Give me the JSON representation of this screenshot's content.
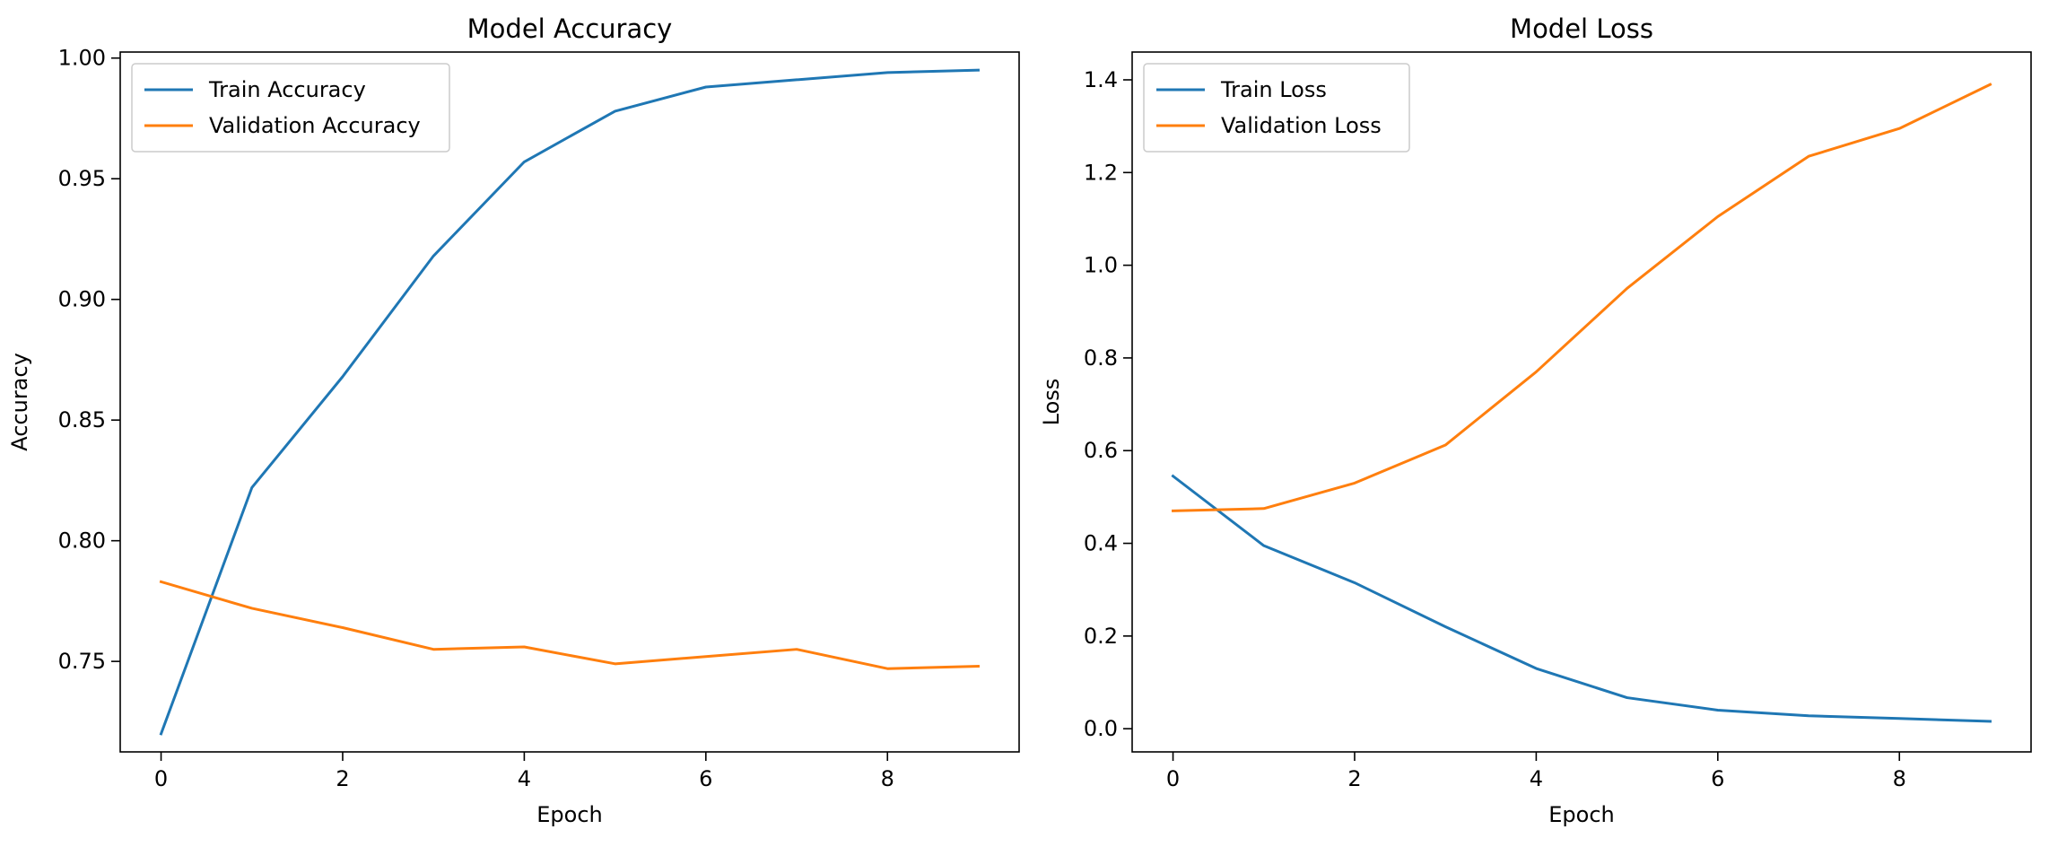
{
  "chart_data": [
    {
      "type": "line",
      "title": "Model Accuracy",
      "xlabel": "Epoch",
      "ylabel": "Accuracy",
      "x": [
        0,
        1,
        2,
        3,
        4,
        5,
        6,
        7,
        8,
        9
      ],
      "xlim": [
        -0.45,
        9.45
      ],
      "ylim": [
        0.7125,
        1.0025
      ],
      "xticks": [
        0,
        2,
        4,
        6,
        8
      ],
      "yticks": [
        0.75,
        0.8,
        0.85,
        0.9,
        0.95,
        1.0
      ],
      "xtick_labels": [
        "0",
        "2",
        "4",
        "6",
        "8"
      ],
      "ytick_labels": [
        "0.75",
        "0.80",
        "0.85",
        "0.90",
        "0.95",
        "1.00"
      ],
      "grid": false,
      "legend_position": "upper left",
      "series": [
        {
          "name": "Train Accuracy",
          "color": "#1f77b4",
          "values": [
            0.72,
            0.822,
            0.868,
            0.918,
            0.957,
            0.978,
            0.988,
            0.991,
            0.994,
            0.995
          ]
        },
        {
          "name": "Validation Accuracy",
          "color": "#ff7f0e",
          "values": [
            0.783,
            0.772,
            0.764,
            0.755,
            0.756,
            0.749,
            0.752,
            0.755,
            0.747,
            0.748
          ]
        }
      ]
    },
    {
      "type": "line",
      "title": "Model Loss",
      "xlabel": "Epoch",
      "ylabel": "Loss",
      "x": [
        0,
        1,
        2,
        3,
        4,
        5,
        6,
        7,
        8,
        9
      ],
      "xlim": [
        -0.45,
        9.45
      ],
      "ylim": [
        -0.05,
        1.46
      ],
      "xticks": [
        0,
        2,
        4,
        6,
        8
      ],
      "yticks": [
        0.0,
        0.2,
        0.4,
        0.6,
        0.8,
        1.0,
        1.2,
        1.4
      ],
      "xtick_labels": [
        "0",
        "2",
        "4",
        "6",
        "8"
      ],
      "ytick_labels": [
        "0.0",
        "0.2",
        "0.4",
        "0.6",
        "0.8",
        "1.0",
        "1.2",
        "1.4"
      ],
      "grid": false,
      "legend_position": "upper left",
      "series": [
        {
          "name": "Train Loss",
          "color": "#1f77b4",
          "values": [
            0.545,
            0.395,
            0.315,
            0.22,
            0.13,
            0.067,
            0.04,
            0.028,
            0.022,
            0.016
          ]
        },
        {
          "name": "Validation Loss",
          "color": "#ff7f0e",
          "values": [
            0.47,
            0.475,
            0.53,
            0.612,
            0.77,
            0.95,
            1.105,
            1.235,
            1.295,
            1.39
          ]
        }
      ]
    }
  ]
}
